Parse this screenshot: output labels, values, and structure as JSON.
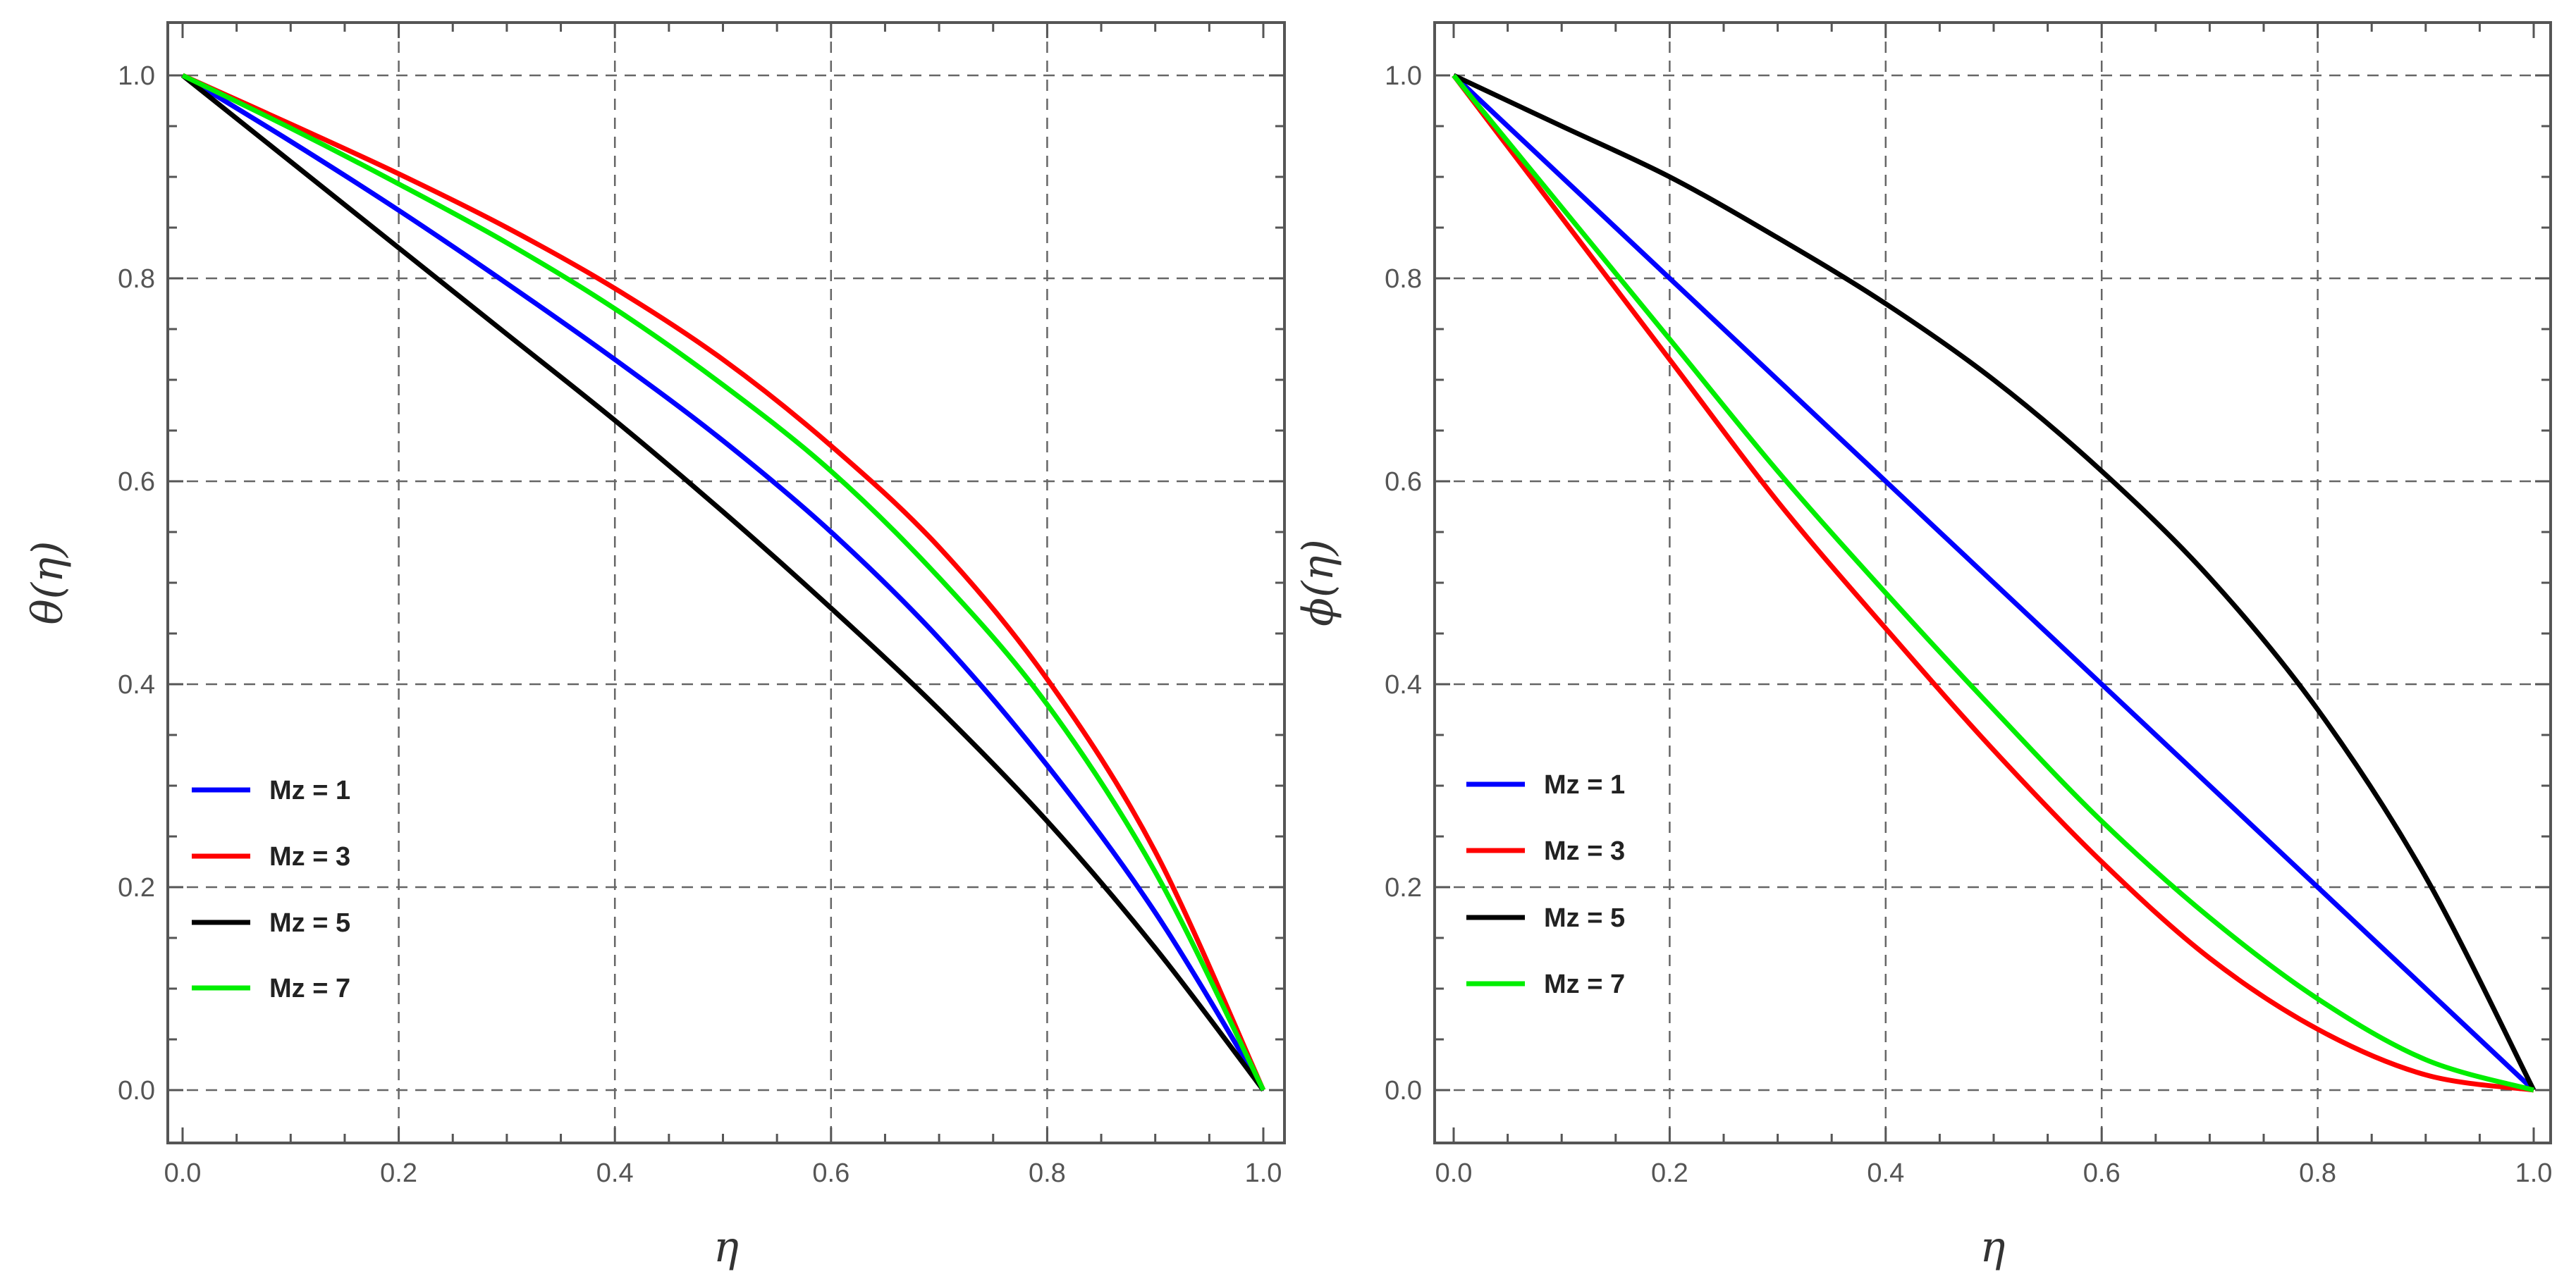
{
  "chart_data": [
    {
      "type": "line",
      "id": "theta",
      "xlabel": "η",
      "ylabel": "θ(η)",
      "xlim": [
        0,
        1
      ],
      "ylim": [
        0,
        1
      ],
      "x_ticks": [
        "0.0",
        "0.2",
        "0.4",
        "0.6",
        "0.8",
        "1.0"
      ],
      "y_ticks": [
        "0.0",
        "0.2",
        "0.4",
        "0.6",
        "0.8",
        "1.0"
      ],
      "grid": "dashed",
      "legend_position": "bottom-left",
      "x": [
        0,
        0.1,
        0.2,
        0.3,
        0.4,
        0.5,
        0.6,
        0.7,
        0.8,
        0.9,
        1.0
      ],
      "series": [
        {
          "name": "Mz = 1",
          "color": "#0000ff",
          "values": [
            1.0,
            0.935,
            0.867,
            0.795,
            0.72,
            0.64,
            0.55,
            0.445,
            0.32,
            0.175,
            0.0
          ]
        },
        {
          "name": "Mz = 3",
          "color": "#ff0000",
          "values": [
            1.0,
            0.952,
            0.903,
            0.85,
            0.79,
            0.72,
            0.635,
            0.535,
            0.405,
            0.235,
            0.0
          ]
        },
        {
          "name": "Mz = 5",
          "color": "#000000",
          "values": [
            1.0,
            0.915,
            0.83,
            0.745,
            0.66,
            0.57,
            0.475,
            0.375,
            0.265,
            0.14,
            0.0
          ]
        },
        {
          "name": "Mz = 7",
          "color": "#00ee00",
          "values": [
            1.0,
            0.948,
            0.893,
            0.835,
            0.77,
            0.695,
            0.61,
            0.505,
            0.38,
            0.215,
            0.0
          ]
        }
      ]
    },
    {
      "type": "line",
      "id": "phi",
      "xlabel": "η",
      "ylabel": "ϕ(η)",
      "xlim": [
        0,
        1
      ],
      "ylim": [
        0,
        1
      ],
      "x_ticks": [
        "0.0",
        "0.2",
        "0.4",
        "0.6",
        "0.8",
        "1.0"
      ],
      "y_ticks": [
        "0.0",
        "0.2",
        "0.4",
        "0.6",
        "0.8",
        "1.0"
      ],
      "grid": "dashed",
      "legend_position": "bottom-left",
      "x": [
        0,
        0.1,
        0.2,
        0.3,
        0.4,
        0.5,
        0.6,
        0.7,
        0.8,
        0.9,
        1.0
      ],
      "series": [
        {
          "name": "Mz = 1",
          "color": "#0000ff",
          "values": [
            1.0,
            0.9,
            0.8,
            0.7,
            0.6,
            0.5,
            0.4,
            0.3,
            0.2,
            0.1,
            0.0
          ]
        },
        {
          "name": "Mz = 3",
          "color": "#ff0000",
          "values": [
            1.0,
            0.86,
            0.72,
            0.58,
            0.455,
            0.335,
            0.225,
            0.13,
            0.06,
            0.015,
            0.0
          ]
        },
        {
          "name": "Mz = 5",
          "color": "#000000",
          "values": [
            1.0,
            0.95,
            0.9,
            0.84,
            0.775,
            0.7,
            0.61,
            0.505,
            0.375,
            0.21,
            0.0
          ]
        },
        {
          "name": "Mz = 7",
          "color": "#00ee00",
          "values": [
            1.0,
            0.87,
            0.74,
            0.61,
            0.49,
            0.375,
            0.265,
            0.17,
            0.09,
            0.03,
            0.0
          ]
        }
      ]
    }
  ]
}
